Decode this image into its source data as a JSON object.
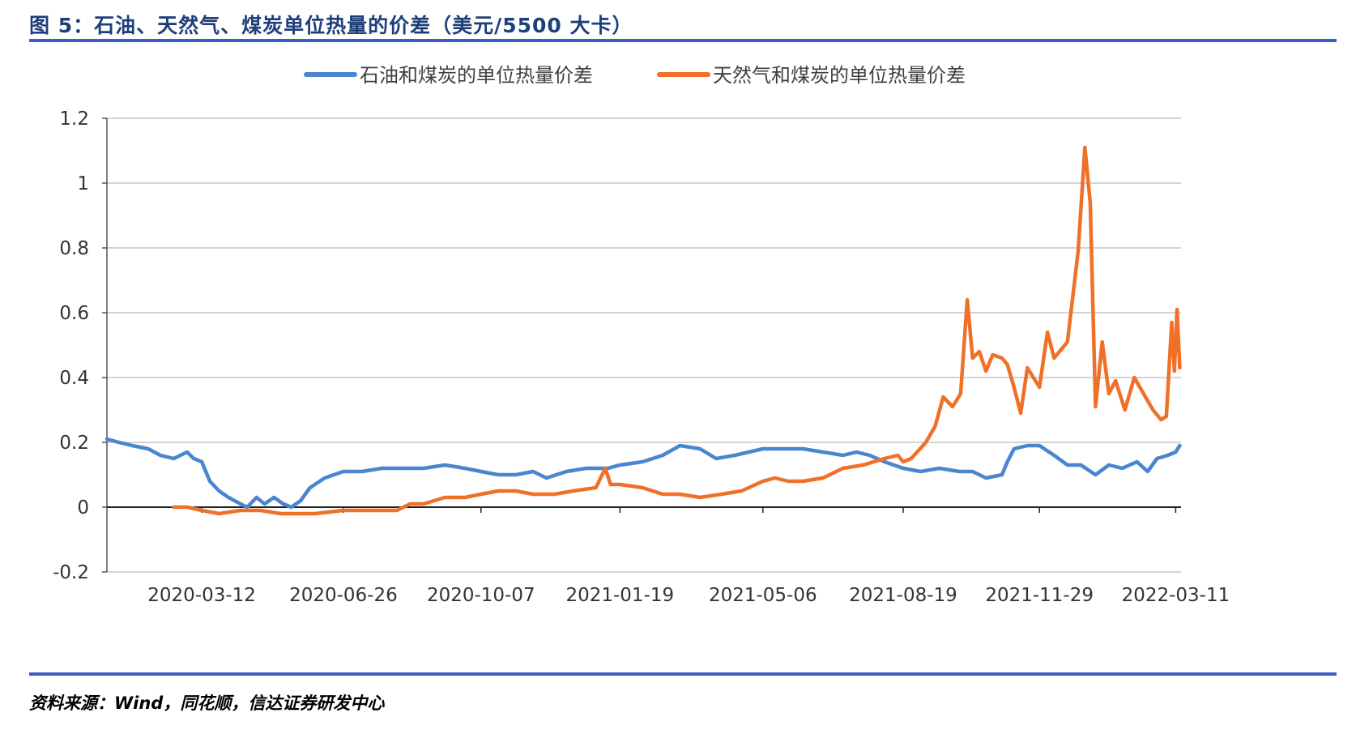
{
  "figure_title": "图 5：石油、天然气、煤炭单位热量的价差（美元/5500 大卡）",
  "source_note": "资料来源：Wind，同花顺，信达证券研发中心",
  "chart_data": {
    "type": "line",
    "title": "",
    "xlabel": "",
    "ylabel": "",
    "ylim": [
      -0.2,
      1.2
    ],
    "xlim": [
      "2020-01-01",
      "2022-03-15"
    ],
    "yticks": [
      "-0.2",
      "0",
      "0.2",
      "0.4",
      "0.6",
      "0.8",
      "1",
      "1.2"
    ],
    "xtick_labels": [
      "2020-03-12",
      "2020-06-26",
      "2020-10-07",
      "2021-01-19",
      "2021-05-06",
      "2021-08-19",
      "2021-11-29",
      "2022-03-11"
    ],
    "grid": true,
    "legend_position": "top",
    "series": [
      {
        "name": "石油和煤炭的单位热量价差",
        "color": "#4a86cf",
        "points": [
          [
            "2020-01-01",
            0.21
          ],
          [
            "2020-01-10",
            0.2
          ],
          [
            "2020-01-20",
            0.19
          ],
          [
            "2020-02-01",
            0.18
          ],
          [
            "2020-02-10",
            0.16
          ],
          [
            "2020-02-20",
            0.15
          ],
          [
            "2020-03-01",
            0.17
          ],
          [
            "2020-03-06",
            0.15
          ],
          [
            "2020-03-12",
            0.14
          ],
          [
            "2020-03-18",
            0.08
          ],
          [
            "2020-03-25",
            0.05
          ],
          [
            "2020-04-01",
            0.03
          ],
          [
            "2020-04-10",
            0.01
          ],
          [
            "2020-04-15",
            0.0
          ],
          [
            "2020-04-22",
            0.03
          ],
          [
            "2020-04-28",
            0.01
          ],
          [
            "2020-05-05",
            0.03
          ],
          [
            "2020-05-12",
            0.01
          ],
          [
            "2020-05-18",
            0.0
          ],
          [
            "2020-05-25",
            0.02
          ],
          [
            "2020-06-01",
            0.06
          ],
          [
            "2020-06-12",
            0.09
          ],
          [
            "2020-06-26",
            0.11
          ],
          [
            "2020-07-10",
            0.11
          ],
          [
            "2020-07-25",
            0.12
          ],
          [
            "2020-08-10",
            0.12
          ],
          [
            "2020-08-25",
            0.12
          ],
          [
            "2020-09-10",
            0.13
          ],
          [
            "2020-09-25",
            0.12
          ],
          [
            "2020-10-07",
            0.11
          ],
          [
            "2020-10-20",
            0.1
          ],
          [
            "2020-11-02",
            0.1
          ],
          [
            "2020-11-15",
            0.11
          ],
          [
            "2020-11-25",
            0.09
          ],
          [
            "2020-12-10",
            0.11
          ],
          [
            "2020-12-25",
            0.12
          ],
          [
            "2021-01-10",
            0.12
          ],
          [
            "2021-01-19",
            0.13
          ],
          [
            "2021-02-05",
            0.14
          ],
          [
            "2021-02-20",
            0.16
          ],
          [
            "2021-03-05",
            0.19
          ],
          [
            "2021-03-20",
            0.18
          ],
          [
            "2021-04-01",
            0.15
          ],
          [
            "2021-04-15",
            0.16
          ],
          [
            "2021-05-06",
            0.18
          ],
          [
            "2021-05-20",
            0.18
          ],
          [
            "2021-06-05",
            0.18
          ],
          [
            "2021-06-20",
            0.17
          ],
          [
            "2021-07-05",
            0.16
          ],
          [
            "2021-07-15",
            0.17
          ],
          [
            "2021-07-25",
            0.16
          ],
          [
            "2021-08-05",
            0.14
          ],
          [
            "2021-08-19",
            0.12
          ],
          [
            "2021-09-01",
            0.11
          ],
          [
            "2021-09-15",
            0.12
          ],
          [
            "2021-09-30",
            0.11
          ],
          [
            "2021-10-10",
            0.11
          ],
          [
            "2021-10-20",
            0.09
          ],
          [
            "2021-11-01",
            0.1
          ],
          [
            "2021-11-05",
            0.14
          ],
          [
            "2021-11-10",
            0.18
          ],
          [
            "2021-11-20",
            0.19
          ],
          [
            "2021-11-29",
            0.19
          ],
          [
            "2021-12-10",
            0.16
          ],
          [
            "2021-12-20",
            0.13
          ],
          [
            "2021-12-30",
            0.13
          ],
          [
            "2022-01-10",
            0.1
          ],
          [
            "2022-01-20",
            0.13
          ],
          [
            "2022-01-30",
            0.12
          ],
          [
            "2022-02-10",
            0.14
          ],
          [
            "2022-02-18",
            0.11
          ],
          [
            "2022-02-25",
            0.15
          ],
          [
            "2022-03-05",
            0.16
          ],
          [
            "2022-03-11",
            0.17
          ],
          [
            "2022-03-14",
            0.19
          ]
        ]
      },
      {
        "name": "天然气和煤炭的单位热量价差",
        "color": "#f07028",
        "points": [
          [
            "2020-02-20",
            0.0
          ],
          [
            "2020-03-01",
            0.0
          ],
          [
            "2020-03-12",
            -0.01
          ],
          [
            "2020-03-25",
            -0.02
          ],
          [
            "2020-04-10",
            -0.01
          ],
          [
            "2020-04-25",
            -0.01
          ],
          [
            "2020-05-10",
            -0.02
          ],
          [
            "2020-05-25",
            -0.02
          ],
          [
            "2020-06-05",
            -0.02
          ],
          [
            "2020-06-26",
            -0.01
          ],
          [
            "2020-07-10",
            -0.01
          ],
          [
            "2020-07-25",
            -0.01
          ],
          [
            "2020-08-05",
            -0.01
          ],
          [
            "2020-08-15",
            0.01
          ],
          [
            "2020-08-25",
            0.01
          ],
          [
            "2020-09-10",
            0.03
          ],
          [
            "2020-09-25",
            0.03
          ],
          [
            "2020-10-07",
            0.04
          ],
          [
            "2020-10-20",
            0.05
          ],
          [
            "2020-11-02",
            0.05
          ],
          [
            "2020-11-15",
            0.04
          ],
          [
            "2020-12-01",
            0.04
          ],
          [
            "2020-12-15",
            0.05
          ],
          [
            "2021-01-01",
            0.06
          ],
          [
            "2021-01-08",
            0.12
          ],
          [
            "2021-01-12",
            0.07
          ],
          [
            "2021-01-19",
            0.07
          ],
          [
            "2021-02-05",
            0.06
          ],
          [
            "2021-02-20",
            0.04
          ],
          [
            "2021-03-05",
            0.04
          ],
          [
            "2021-03-20",
            0.03
          ],
          [
            "2021-04-05",
            0.04
          ],
          [
            "2021-04-20",
            0.05
          ],
          [
            "2021-05-06",
            0.08
          ],
          [
            "2021-05-15",
            0.09
          ],
          [
            "2021-05-25",
            0.08
          ],
          [
            "2021-06-05",
            0.08
          ],
          [
            "2021-06-20",
            0.09
          ],
          [
            "2021-07-05",
            0.12
          ],
          [
            "2021-07-20",
            0.13
          ],
          [
            "2021-08-05",
            0.15
          ],
          [
            "2021-08-15",
            0.16
          ],
          [
            "2021-08-19",
            0.14
          ],
          [
            "2021-08-25",
            0.15
          ],
          [
            "2021-09-05",
            0.2
          ],
          [
            "2021-09-12",
            0.25
          ],
          [
            "2021-09-18",
            0.34
          ],
          [
            "2021-09-25",
            0.31
          ],
          [
            "2021-10-01",
            0.35
          ],
          [
            "2021-10-06",
            0.64
          ],
          [
            "2021-10-10",
            0.46
          ],
          [
            "2021-10-15",
            0.48
          ],
          [
            "2021-10-20",
            0.42
          ],
          [
            "2021-10-25",
            0.47
          ],
          [
            "2021-11-01",
            0.46
          ],
          [
            "2021-11-05",
            0.44
          ],
          [
            "2021-11-10",
            0.37
          ],
          [
            "2021-11-15",
            0.29
          ],
          [
            "2021-11-20",
            0.43
          ],
          [
            "2021-11-29",
            0.37
          ],
          [
            "2021-12-05",
            0.54
          ],
          [
            "2021-12-10",
            0.46
          ],
          [
            "2021-12-20",
            0.51
          ],
          [
            "2021-12-28",
            0.79
          ],
          [
            "2022-01-02",
            1.11
          ],
          [
            "2022-01-06",
            0.94
          ],
          [
            "2022-01-10",
            0.31
          ],
          [
            "2022-01-15",
            0.51
          ],
          [
            "2022-01-20",
            0.35
          ],
          [
            "2022-01-25",
            0.39
          ],
          [
            "2022-02-01",
            0.3
          ],
          [
            "2022-02-08",
            0.4
          ],
          [
            "2022-02-15",
            0.35
          ],
          [
            "2022-02-22",
            0.3
          ],
          [
            "2022-02-28",
            0.27
          ],
          [
            "2022-03-04",
            0.28
          ],
          [
            "2022-03-08",
            0.57
          ],
          [
            "2022-03-10",
            0.42
          ],
          [
            "2022-03-12",
            0.61
          ],
          [
            "2022-03-14",
            0.43
          ]
        ]
      }
    ]
  }
}
